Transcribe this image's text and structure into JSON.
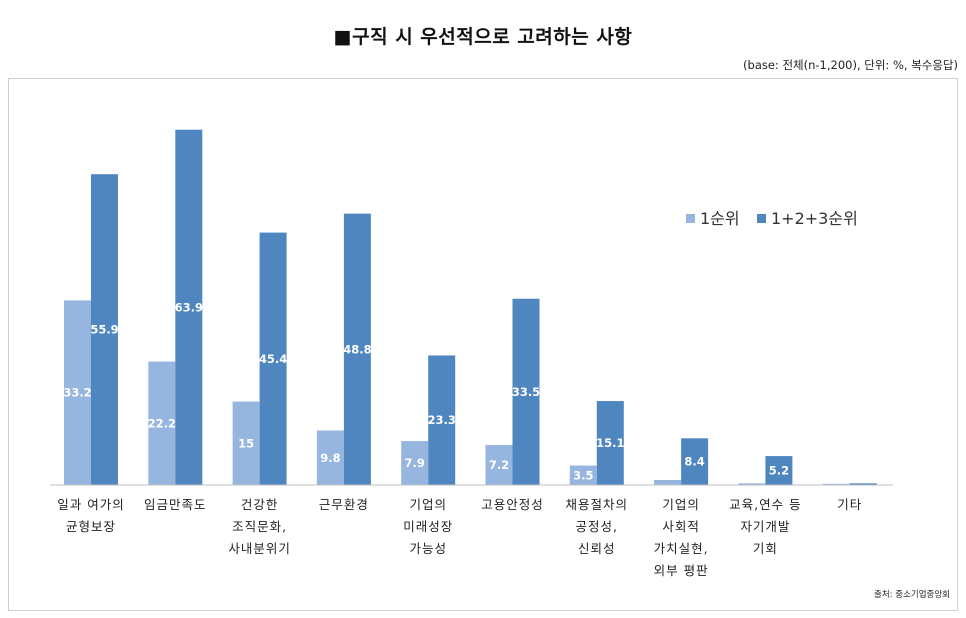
{
  "title": "■구직 시 우선적으로 고려하는 사항",
  "base_note": "(base: 전체(n-1,200), 단위: %, 복수응답)",
  "source": "출처: 중소기업중앙회",
  "colors": {
    "first": "#96b6e0",
    "total": "#4f86bf",
    "axis": "#bfbfbf"
  },
  "chart_data": {
    "type": "bar",
    "title": "구직 시 우선적으로 고려하는 사항",
    "unit": "%",
    "categories": [
      [
        "일과 여가의",
        "균형보장"
      ],
      [
        "임금만족도"
      ],
      [
        "건강한",
        "조직문화,",
        "사내분위기"
      ],
      [
        "근무환경"
      ],
      [
        "기업의",
        "미래성장",
        "가능성"
      ],
      [
        "고용안정성"
      ],
      [
        "채용절차의",
        "공정성,",
        "신뢰성"
      ],
      [
        "기업의",
        "사회적",
        "가치실현,",
        "외부 평판"
      ],
      [
        "교육,연수 등",
        "자기개발",
        "기회"
      ],
      [
        "기타"
      ]
    ],
    "series": [
      {
        "name": "1순위",
        "values": [
          33.2,
          22.2,
          15,
          9.8,
          7.9,
          7.2,
          3.5,
          0.9,
          0.3,
          0.1
        ],
        "labels": [
          "33.2",
          "22.2",
          "15",
          "9.8",
          "7.9",
          "7.2",
          "3.5",
          "",
          "",
          ""
        ]
      },
      {
        "name": "1+2+3순위",
        "values": [
          55.9,
          63.9,
          45.4,
          48.8,
          23.3,
          33.5,
          15.1,
          8.4,
          5.2,
          0.3
        ],
        "labels": [
          "55.9",
          "63.9",
          "45.4",
          "48.8",
          "23.3",
          "33.5",
          "15.1",
          "8.4",
          "5.2",
          ""
        ]
      }
    ],
    "ylim": [
      0,
      70
    ],
    "legend_position": "right"
  }
}
